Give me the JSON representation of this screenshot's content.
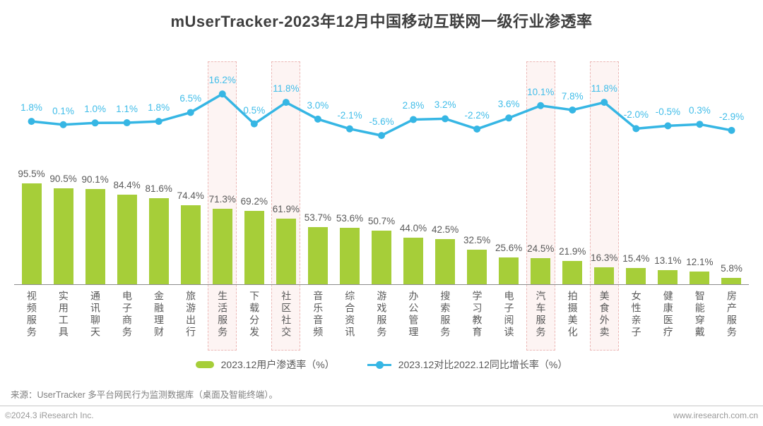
{
  "title": "mUserTracker-2023年12月中国移动互联网一级行业渗透率",
  "chart_data": {
    "type": "bar",
    "title": "mUserTracker-2023年12月中国移动互联网一级行业渗透率",
    "categories": [
      "视频服务",
      "实用工具",
      "通讯聊天",
      "电子商务",
      "金融理财",
      "旅游出行",
      "生活服务",
      "下载分发",
      "社区社交",
      "音乐音频",
      "综合资讯",
      "游戏服务",
      "办公管理",
      "搜索服务",
      "学习教育",
      "电子阅读",
      "汽车服务",
      "拍摄美化",
      "美食外卖",
      "女性亲子",
      "健康医疗",
      "智能穿戴",
      "房产服务"
    ],
    "series": [
      {
        "name": "2023.12用户渗透率（%）",
        "type": "bar",
        "values": [
          95.5,
          90.5,
          90.1,
          84.4,
          81.6,
          74.4,
          71.3,
          69.2,
          61.9,
          53.7,
          53.6,
          50.7,
          44.0,
          42.5,
          32.5,
          25.6,
          24.5,
          21.9,
          16.3,
          15.4,
          13.1,
          12.1,
          5.8
        ]
      },
      {
        "name": "2023.12对比2022.12同比增长率（%）",
        "type": "line",
        "values": [
          1.8,
          0.1,
          1.0,
          1.1,
          1.8,
          6.5,
          16.2,
          0.5,
          11.8,
          3.0,
          -2.1,
          -5.6,
          2.8,
          3.2,
          -2.2,
          3.6,
          10.1,
          7.8,
          11.8,
          -2.0,
          -0.5,
          0.3,
          -2.9
        ]
      }
    ],
    "highlight_indices": [
      6,
      8,
      16,
      18
    ],
    "highlighted_categories": [
      "生活服务",
      "社区社交",
      "汽车服务",
      "美食外卖"
    ],
    "value_label_suffix": "%",
    "grid": false,
    "axes_visible": false,
    "legend_position": "bottom",
    "ylim_bar": [
      0,
      100
    ],
    "ylim_line": [
      -10,
      20
    ]
  },
  "colors": {
    "bar": "#a6ce39",
    "line": "#36b6e4",
    "line_label": "#41bde9",
    "bar_label": "#595959",
    "highlight_fill": "#fdf4f3",
    "highlight_border": "#ecb8b6"
  },
  "source_note": "来源：UserTracker 多平台网民行为监测数据库（桌面及智能终端）。",
  "footer": {
    "copyright": "©2024.3 iResearch Inc.",
    "website": "www.iresearch.com.cn"
  }
}
